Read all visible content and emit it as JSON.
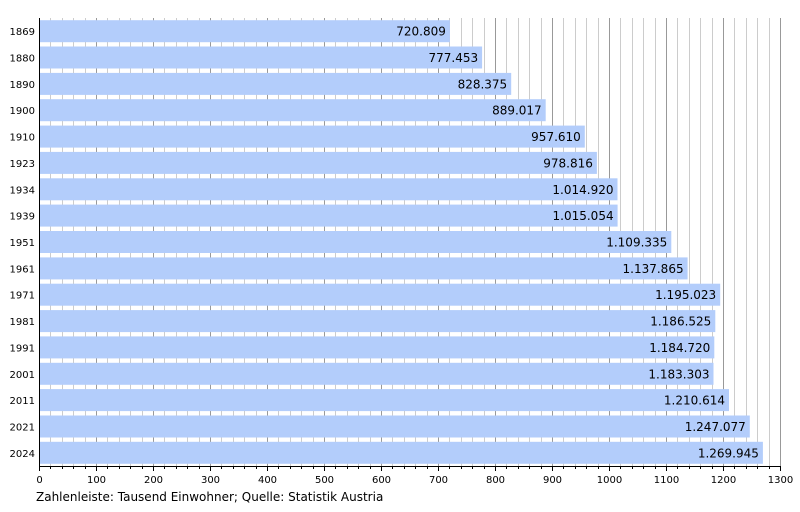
{
  "chart_data": {
    "type": "bar",
    "orientation": "horizontal",
    "categories": [
      "1869",
      "1880",
      "1890",
      "1900",
      "1910",
      "1923",
      "1934",
      "1939",
      "1951",
      "1961",
      "1971",
      "1981",
      "1991",
      "2001",
      "2011",
      "2021",
      "2024"
    ],
    "values": [
      720.809,
      777.453,
      828.375,
      889.017,
      957.61,
      978.816,
      1014.92,
      1015.054,
      1109.335,
      1137.865,
      1195.023,
      1186.525,
      1184.72,
      1183.303,
      1210.614,
      1247.077,
      1269.945
    ],
    "value_labels": [
      "720.809",
      "777.453",
      "828.375",
      "889.017",
      "957.610",
      "978.816",
      "1.014.920",
      "1.015.054",
      "1.109.335",
      "1.137.865",
      "1.195.023",
      "1.186.525",
      "1.184.720",
      "1.183.303",
      "1.210.614",
      "1.247.077",
      "1.269.945"
    ],
    "xlim": [
      0,
      1300
    ],
    "x_ticks": [
      "0",
      "100",
      "200",
      "300",
      "400",
      "500",
      "600",
      "700",
      "800",
      "900",
      "1000",
      "1100",
      "1200",
      "1300"
    ],
    "grid": true,
    "bar_color": "#b3cdfb",
    "major_grid_color": "#999999",
    "minor_grid_color": "#cccccc"
  },
  "caption": "Zahlenleiste: Tausend Einwohner; Quelle: Statistik Austria"
}
